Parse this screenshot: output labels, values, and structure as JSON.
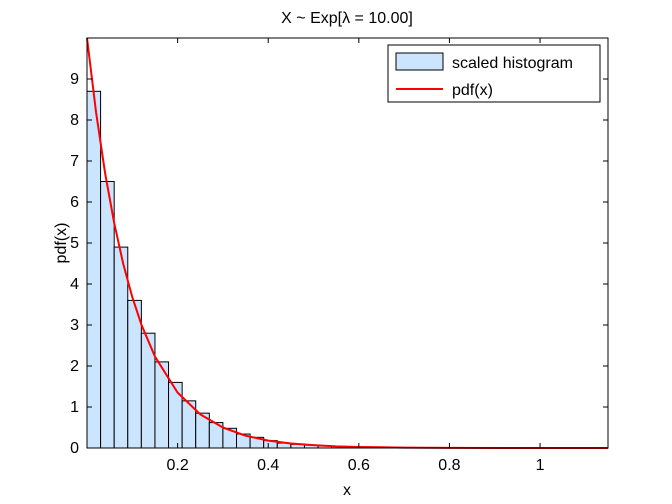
{
  "chart_data": {
    "type": "bar",
    "title": "X ~ Exp[λ = 10.00]",
    "xlabel": "x",
    "ylabel": "pdf(x)",
    "xlim": [
      0,
      1.15
    ],
    "ylim": [
      0,
      10
    ],
    "xticks": [
      {
        "value": 0.2,
        "label": "0.2"
      },
      {
        "value": 0.4,
        "label": "0.4"
      },
      {
        "value": 0.6,
        "label": "0.6"
      },
      {
        "value": 0.8,
        "label": "0.8"
      },
      {
        "value": 1.0,
        "label": "1"
      }
    ],
    "yticks": [
      {
        "value": 0,
        "label": "0"
      },
      {
        "value": 1,
        "label": "1"
      },
      {
        "value": 2,
        "label": "2"
      },
      {
        "value": 3,
        "label": "3"
      },
      {
        "value": 4,
        "label": "4"
      },
      {
        "value": 5,
        "label": "5"
      },
      {
        "value": 6,
        "label": "6"
      },
      {
        "value": 7,
        "label": "7"
      },
      {
        "value": 8,
        "label": "8"
      },
      {
        "value": 9,
        "label": "9"
      }
    ],
    "grid": false,
    "legend_position": "top-right",
    "series": [
      {
        "name": "scaled histogram",
        "kind": "histogram",
        "color": "#cce5ff",
        "edge_color": "#000000",
        "bin_edges": [
          0.0,
          0.03,
          0.06,
          0.09,
          0.12,
          0.15,
          0.18,
          0.21,
          0.24,
          0.27,
          0.3,
          0.33,
          0.36,
          0.39,
          0.42,
          0.45,
          0.48,
          0.51,
          0.54,
          0.57,
          0.6,
          0.63,
          0.66,
          0.69,
          0.72
        ],
        "values": [
          8.7,
          6.5,
          4.9,
          3.6,
          2.8,
          2.1,
          1.6,
          1.15,
          0.85,
          0.62,
          0.48,
          0.34,
          0.26,
          0.18,
          0.12,
          0.09,
          0.07,
          0.05,
          0.04,
          0.03,
          0.02,
          0.015,
          0.01,
          0.008
        ]
      },
      {
        "name": "pdf(x)",
        "kind": "line",
        "color": "#ff0000",
        "x": [
          0.0,
          0.02,
          0.04,
          0.06,
          0.08,
          0.1,
          0.12,
          0.15,
          0.2,
          0.25,
          0.3,
          0.35,
          0.4,
          0.45,
          0.5,
          0.55,
          0.6,
          0.7,
          0.8,
          0.9,
          1.0,
          1.15
        ],
        "y": [
          10.0,
          8.19,
          6.7,
          5.49,
          4.49,
          3.68,
          3.01,
          2.23,
          1.35,
          0.82,
          0.5,
          0.3,
          0.18,
          0.11,
          0.07,
          0.04,
          0.025,
          0.009,
          0.003,
          0.001,
          0.0005,
          0.0001
        ]
      }
    ]
  }
}
